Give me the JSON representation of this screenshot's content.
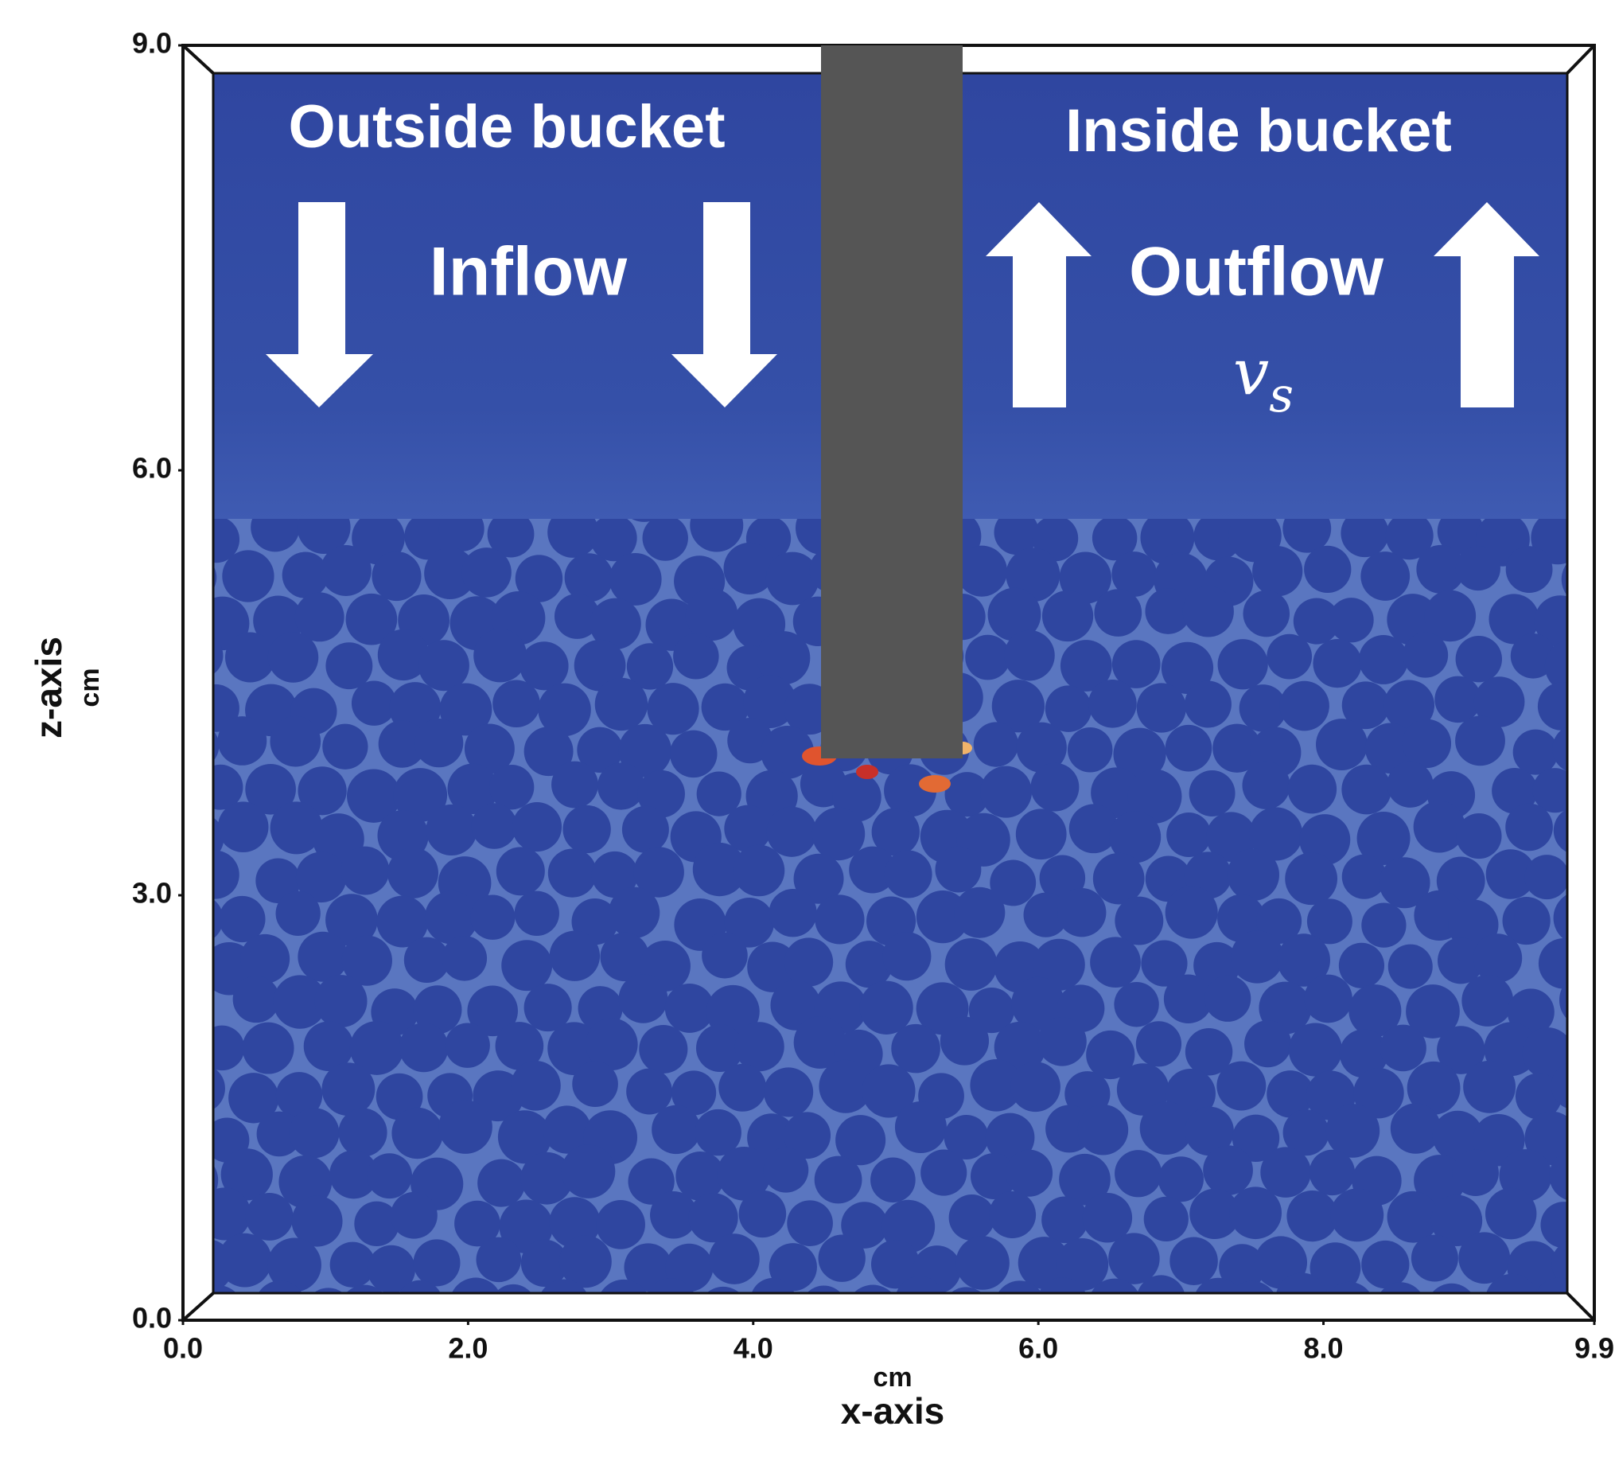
{
  "chart_data": {
    "type": "field",
    "annotations": {
      "outside": "Outside bucket",
      "inside": "Inside bucket",
      "inflow": "Inflow",
      "outflow": "Outflow",
      "velocity": {
        "base": "v",
        "sub": "s"
      }
    },
    "x_label": "x-axis",
    "x_unit": "cm",
    "y_label": "z-axis",
    "y_unit": "cm",
    "xlim": [
      0,
      9.9
    ],
    "xticks": [
      {
        "value": 0,
        "label": "0.0"
      },
      {
        "value": 2,
        "label": "2.0"
      },
      {
        "value": 4,
        "label": "4.0"
      },
      {
        "value": 6,
        "label": "6.0"
      },
      {
        "value": 8,
        "label": "8.0"
      },
      9.9
    ],
    "ylim": [
      0,
      9
    ],
    "yticks": [
      {
        "value": 0,
        "label": "0.0"
      },
      {
        "value": 3,
        "label": "3.0"
      },
      {
        "value": 6,
        "label": "6.0"
      },
      {
        "value": 9,
        "label": "9.0"
      }
    ]
  }
}
